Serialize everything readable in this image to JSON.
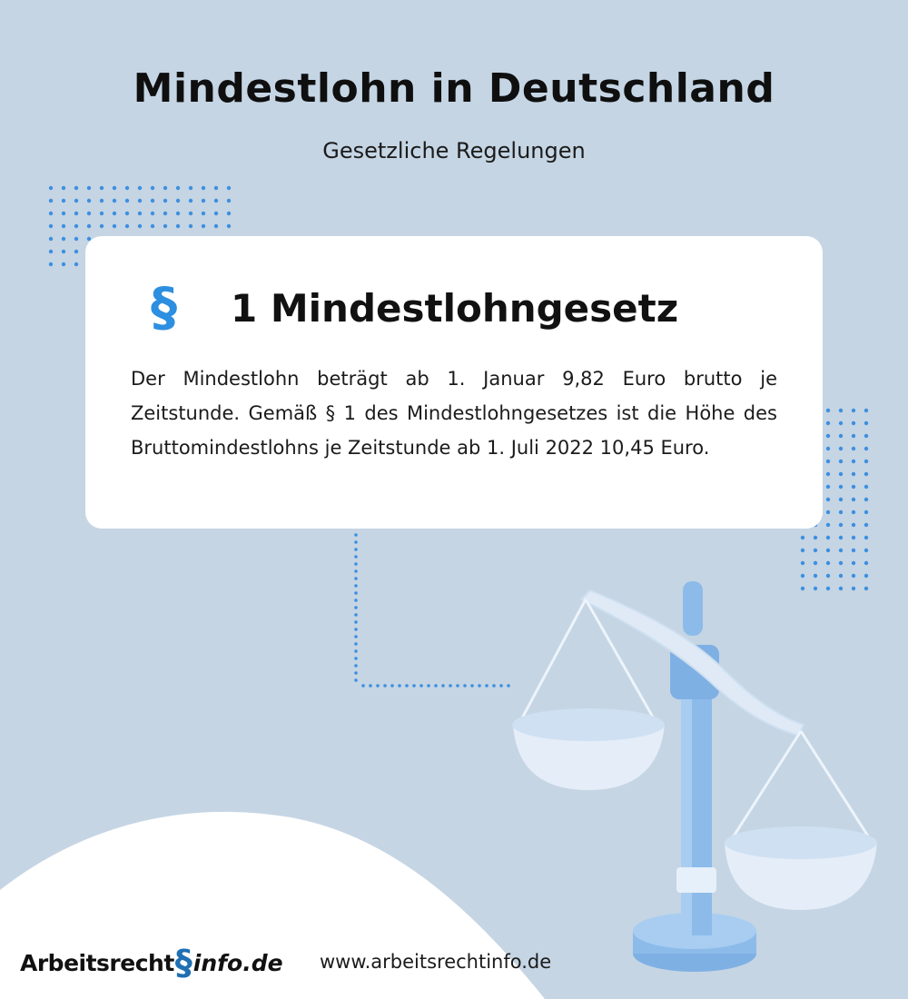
{
  "header": {
    "title": "Mindestlohn in Deutschland",
    "subtitle": "Gesetzliche Regelungen"
  },
  "card": {
    "icon_name": "paragraph-icon",
    "icon_glyph": "§",
    "title": "1 Mindestlohngesetz",
    "text": "Der Mindestlohn beträgt ab 1. Januar 9,82 Euro brutto je Zeitstunde. Gemäß § 1 des Mindestlohngesetzes ist die Höhe des Bruttomindestlohns je Zeitstunde ab 1. Juli 2022 10,45 Euro."
  },
  "footer": {
    "logo_part1": "Arbeitsrecht",
    "logo_symbol": "§",
    "logo_part2": "info.de",
    "url": "www.arbeitsrechtinfo.de"
  },
  "colors": {
    "background": "#c5d5e4",
    "accent": "#2d8fe0",
    "dots": "#3d8fe0",
    "card": "#ffffff"
  }
}
